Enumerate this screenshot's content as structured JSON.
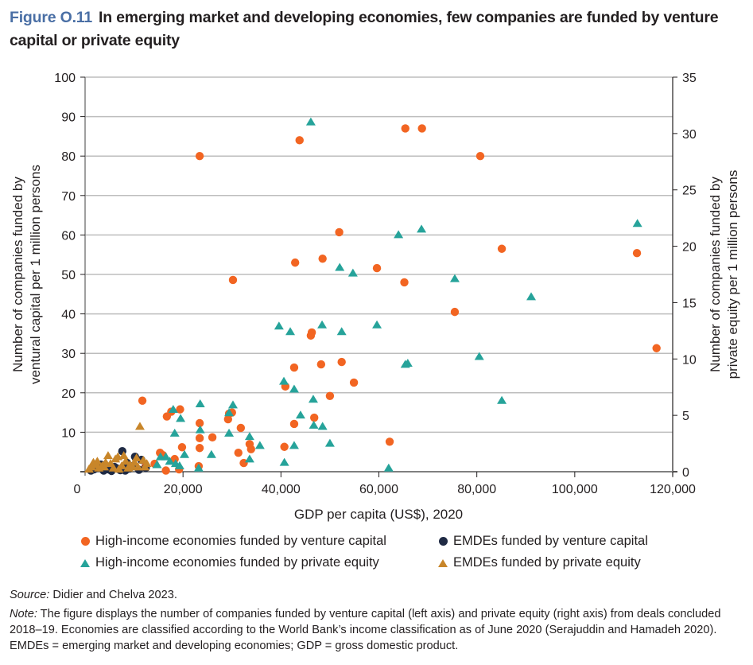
{
  "figure": {
    "number": "Figure O.11",
    "title": "In emerging market and developing economies, few companies are funded by venture capital or private equity"
  },
  "source": {
    "label": "Source:",
    "text": " Didier and Chelva 2023."
  },
  "note": {
    "label": "Note:",
    "text": " The figure displays the number of companies funded by venture capital (left axis) and private equity (right axis) from deals concluded 2018–19. Economies are classified according to the World Bank’s income classification as of June 2020 (Serajuddin and Hamadeh 2020). EMDEs = emerging market and developing economies; GDP = gross domestic product."
  },
  "colors": {
    "hi_vc": "#f26522",
    "emde_vc": "#1f2a44",
    "hi_pe": "#26a39a",
    "emde_pe": "#c8862a",
    "grid": "#bdbdbd",
    "axis": "#231f20"
  },
  "chart_data": {
    "type": "scatter",
    "title": "In emerging market and developing economies, few companies are funded by venture capital or private equity",
    "xlabel": "GDP per capita (US$), 2020",
    "ylabel": "Number of companies funded by ventural capital per 1 million persons",
    "y2label": "Number of companies funded by private equity per 1 million persons",
    "xlim": [
      0,
      120000
    ],
    "ylim": [
      0,
      100
    ],
    "y2lim": [
      0,
      35
    ],
    "xticks": [
      0,
      20000,
      40000,
      60000,
      80000,
      100000,
      120000
    ],
    "xtick_labels": [
      "0",
      "20,000",
      "40,000",
      "60,000",
      "80,000",
      "100,000",
      "120,000"
    ],
    "yticks": [
      0,
      10,
      20,
      30,
      40,
      50,
      60,
      70,
      80,
      90,
      100
    ],
    "ytick_labels": [
      "",
      "10",
      "20",
      "30",
      "40",
      "50",
      "60",
      "70",
      "80",
      "90",
      "100"
    ],
    "y2ticks": [
      0,
      5,
      10,
      15,
      20,
      25,
      30,
      35
    ],
    "y2tick_labels": [
      "0",
      "5",
      "10",
      "15",
      "20",
      "25",
      "30",
      "35"
    ],
    "grid": true,
    "legend_position": "bottom",
    "series": [
      {
        "name": "High-income economies funded by venture capital",
        "marker": "circle",
        "axis": "left",
        "points": [
          [
            23400,
            80
          ],
          [
            43800,
            84
          ],
          [
            65400,
            87
          ],
          [
            68800,
            87
          ],
          [
            80700,
            80
          ],
          [
            30200,
            48.6
          ],
          [
            42900,
            53
          ],
          [
            48500,
            54
          ],
          [
            51900,
            60.7
          ],
          [
            59600,
            51.6
          ],
          [
            65200,
            48
          ],
          [
            85100,
            56.5
          ],
          [
            112700,
            55.4
          ],
          [
            75500,
            40.5
          ],
          [
            116700,
            31.3
          ],
          [
            46300,
            35.3
          ],
          [
            46100,
            34.5
          ],
          [
            42700,
            26.4
          ],
          [
            48200,
            27.2
          ],
          [
            52400,
            27.8
          ],
          [
            54900,
            22.6
          ],
          [
            40900,
            21.6
          ],
          [
            50000,
            19.2
          ],
          [
            46800,
            13.7
          ],
          [
            42700,
            12.1
          ],
          [
            40700,
            6.3
          ],
          [
            62200,
            7.6
          ],
          [
            31800,
            11.1
          ],
          [
            33900,
            5.7
          ],
          [
            32400,
            2.2
          ],
          [
            31300,
            4.8
          ],
          [
            26000,
            8.7
          ],
          [
            29400,
            14.7
          ],
          [
            29200,
            13.3
          ],
          [
            23400,
            12.3
          ],
          [
            23400,
            8.5
          ],
          [
            23400,
            6.0
          ],
          [
            23200,
            1.4
          ],
          [
            11700,
            18.0
          ],
          [
            16700,
            14.0
          ],
          [
            17600,
            15.2
          ],
          [
            19400,
            15.8
          ],
          [
            15300,
            4.8
          ],
          [
            15900,
            4.2
          ],
          [
            18300,
            3.2
          ],
          [
            19200,
            0.6
          ],
          [
            19800,
            6.2
          ],
          [
            14200,
            2.0
          ],
          [
            12300,
            1.2
          ],
          [
            16500,
            0.3
          ],
          [
            33600,
            7.0
          ],
          [
            30000,
            15.0
          ]
        ]
      },
      {
        "name": "EMDEs funded by venture capital",
        "marker": "circle",
        "axis": "left",
        "points": [
          [
            7600,
            5.2
          ],
          [
            10200,
            3.8
          ],
          [
            11500,
            3.0
          ],
          [
            8600,
            2.2
          ],
          [
            9900,
            1.5
          ],
          [
            3200,
            1.8
          ],
          [
            2400,
            1.0
          ],
          [
            4800,
            0.6
          ],
          [
            6000,
            1.2
          ],
          [
            7200,
            0.4
          ],
          [
            1200,
            0.3
          ],
          [
            5400,
            0.2
          ],
          [
            9000,
            0.8
          ],
          [
            11000,
            0.5
          ],
          [
            3800,
            0.3
          ],
          [
            1800,
            0.6
          ],
          [
            6600,
            0.8
          ],
          [
            8200,
            0.3
          ],
          [
            12400,
            1.0
          ]
        ]
      },
      {
        "name": "High-income economies funded by private equity",
        "marker": "triangle",
        "axis": "right",
        "points": [
          [
            46100,
            31.0
          ],
          [
            112800,
            22.0
          ],
          [
            68700,
            21.5
          ],
          [
            64000,
            21.0
          ],
          [
            52000,
            18.1
          ],
          [
            54700,
            17.6
          ],
          [
            75500,
            17.1
          ],
          [
            91100,
            15.5
          ],
          [
            39600,
            12.9
          ],
          [
            48400,
            13.0
          ],
          [
            41900,
            12.4
          ],
          [
            52400,
            12.4
          ],
          [
            59600,
            13.0
          ],
          [
            40600,
            8.0
          ],
          [
            42700,
            7.3
          ],
          [
            65900,
            9.6
          ],
          [
            65400,
            9.5
          ],
          [
            80500,
            10.2
          ],
          [
            46600,
            6.4
          ],
          [
            44000,
            5.0
          ],
          [
            46700,
            4.1
          ],
          [
            48500,
            4.0
          ],
          [
            50000,
            2.5
          ],
          [
            85100,
            6.3
          ],
          [
            62000,
            0.3
          ],
          [
            40700,
            0.8
          ],
          [
            42700,
            2.3
          ],
          [
            30200,
            5.9
          ],
          [
            33600,
            3.1
          ],
          [
            29400,
            5.2
          ],
          [
            29400,
            3.4
          ],
          [
            23500,
            6.0
          ],
          [
            23500,
            3.7
          ],
          [
            25800,
            1.5
          ],
          [
            18300,
            3.4
          ],
          [
            18000,
            5.5
          ],
          [
            19500,
            4.7
          ],
          [
            15400,
            1.3
          ],
          [
            16500,
            1.3
          ],
          [
            17300,
            0.9
          ],
          [
            18500,
            0.7
          ],
          [
            19300,
            0.5
          ],
          [
            20300,
            1.5
          ],
          [
            33600,
            1.1
          ],
          [
            35700,
            2.3
          ],
          [
            14700,
            0.6
          ],
          [
            23200,
            0.3
          ]
        ]
      },
      {
        "name": "EMDEs funded by private equity",
        "marker": "triangle",
        "axis": "right",
        "points": [
          [
            11200,
            4.0
          ],
          [
            4700,
            1.4
          ],
          [
            6200,
            1.1
          ],
          [
            6700,
            1.3
          ],
          [
            4200,
            0.8
          ],
          [
            1300,
            0.4
          ],
          [
            2100,
            0.6
          ],
          [
            2800,
            0.3
          ],
          [
            3500,
            0.5
          ],
          [
            5200,
            0.7
          ],
          [
            7500,
            0.5
          ],
          [
            8300,
            0.9
          ],
          [
            9200,
            0.6
          ],
          [
            10100,
            0.8
          ],
          [
            10800,
            0.4
          ],
          [
            11900,
            1.0
          ],
          [
            12600,
            0.7
          ],
          [
            800,
            0.2
          ],
          [
            1700,
            0.8
          ],
          [
            2500,
            0.9
          ],
          [
            3900,
            0.4
          ],
          [
            5800,
            0.3
          ],
          [
            6900,
            0.2
          ],
          [
            8800,
            0.3
          ],
          [
            9700,
            0.4
          ],
          [
            10500,
            1.2
          ],
          [
            12200,
            0.4
          ],
          [
            7900,
            1.4
          ]
        ]
      }
    ]
  },
  "legend": {
    "items": [
      {
        "label": "High-income economies funded by venture capital",
        "marker": "circle",
        "color": "#f26522"
      },
      {
        "label": "EMDEs funded by venture capital",
        "marker": "circle",
        "color": "#1f2a44"
      },
      {
        "label": "High-income economies funded by private equity",
        "marker": "triangle",
        "color": "#26a39a"
      },
      {
        "label": "EMDEs funded by private equity",
        "marker": "triangle",
        "color": "#c8862a"
      }
    ]
  }
}
